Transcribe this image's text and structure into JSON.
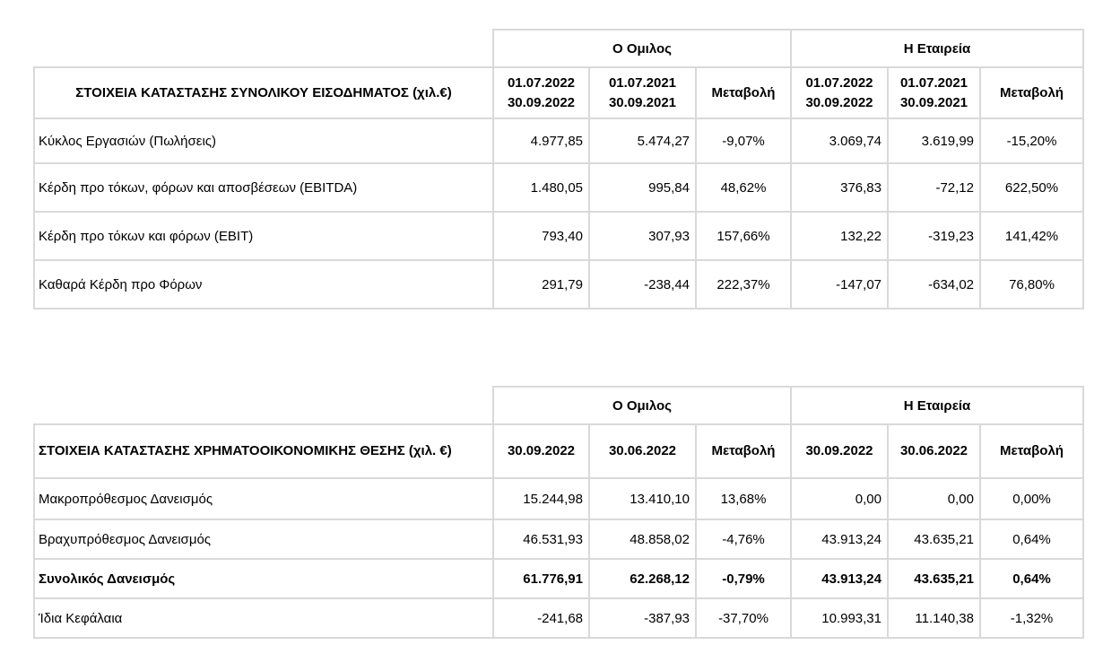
{
  "income": {
    "group_label": "Ο Ομιλος",
    "company_label": "Η Εταιρεία",
    "title": "ΣΤΟΙΧΕΙΑ ΚΑΤΑΣΤΑΣΗΣ ΣΥΝΟΛΙΚΟΥ ΕΙΣΟΔΗΜΑΤΟΣ (χιλ.€)",
    "columns": [
      {
        "line1": "01.07.2022",
        "line2": "30.09.2022"
      },
      {
        "line1": "01.07.2021",
        "line2": "30.09.2021"
      },
      {
        "line1": "Μεταβολή",
        "line2": ""
      },
      {
        "line1": "01.07.2022",
        "line2": "30.09.2022"
      },
      {
        "line1": "01.07.2021",
        "line2": "30.09.2021"
      },
      {
        "line1": "Μεταβολή",
        "line2": ""
      }
    ],
    "rows": [
      {
        "label": "Κύκλος Εργασιών (Πωλήσεις)",
        "values": [
          "4.977,85",
          "5.474,27",
          "-9,07%",
          "3.069,74",
          "3.619,99",
          "-15,20%"
        ]
      },
      {
        "label": "Κέρδη προ τόκων, φόρων και αποσβέσεων (EBITDA)",
        "values": [
          "1.480,05",
          "995,84",
          "48,62%",
          "376,83",
          "-72,12",
          "622,50%"
        ]
      },
      {
        "label": "Κέρδη προ τόκων και φόρων (EBIT)",
        "values": [
          "793,40",
          "307,93",
          "157,66%",
          "132,22",
          "-319,23",
          "141,42%"
        ]
      },
      {
        "label": "Καθαρά Κέρδη προ Φόρων",
        "values": [
          "291,79",
          "-238,44",
          "222,37%",
          "-147,07",
          "-634,02",
          "76,80%"
        ]
      }
    ]
  },
  "financial": {
    "group_label": "Ο Ομιλος",
    "company_label": "Η Εταιρεία",
    "title": "ΣΤΟΙΧΕΙΑ ΚΑΤΑΣΤΑΣΗΣ ΧΡΗΜΑΤΟΟΙΚΟΝΟΜΙΚΗΣ ΘΕΣΗΣ (χιλ. €)",
    "columns": [
      "30.09.2022",
      "30.06.2022",
      "Μεταβολή",
      "30.09.2022",
      "30.06.2022",
      "Μεταβολή"
    ],
    "rows": [
      {
        "label": "Μακροπρόθεσμος Δανεισμός",
        "values": [
          "15.244,98",
          "13.410,10",
          "13,68%",
          "0,00",
          "0,00",
          "0,00%"
        ]
      },
      {
        "label": "Βραχυπρόθεσμος Δανεισμός",
        "values": [
          "46.531,93",
          "48.858,02",
          "-4,76%",
          "43.913,24",
          "43.635,21",
          "0,64%"
        ]
      },
      {
        "label": "Συνολικός Δανεισμός",
        "values": [
          "61.776,91",
          "62.268,12",
          "-0,79%",
          "43.913,24",
          "43.635,21",
          "0,64%"
        ]
      },
      {
        "label": "Ίδια Κεφάλαια",
        "values": [
          "-241,68",
          "-387,93",
          "-37,70%",
          "10.993,31",
          "11.140,38",
          "-1,32%"
        ]
      }
    ]
  }
}
